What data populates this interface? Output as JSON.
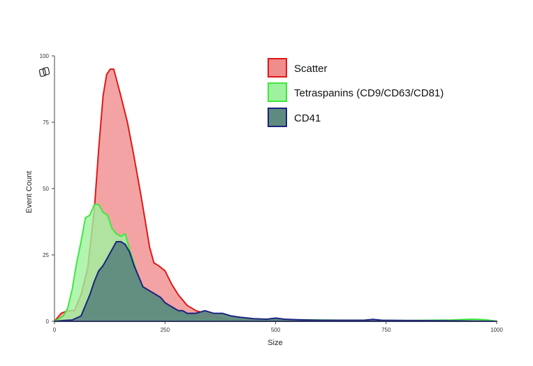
{
  "chart_data": {
    "type": "area",
    "title": "",
    "xlabel": "Size",
    "ylabel": "Event Count",
    "xlim": [
      0,
      1000
    ],
    "ylim": [
      0,
      100
    ],
    "x_ticks": [
      "0",
      "250",
      "500",
      "750",
      "1000"
    ],
    "y_ticks": [
      "0",
      "25",
      "50",
      "75",
      "100"
    ],
    "grid": false,
    "legend_position": "top-right",
    "series": [
      {
        "name": "Scatter",
        "fill": "#f08c8c",
        "stroke": "#e01818",
        "x": [
          0,
          15,
          30,
          45,
          60,
          75,
          90,
          100,
          110,
          118,
          126,
          134,
          142,
          150,
          165,
          180,
          195,
          205,
          215,
          225,
          235,
          250,
          265,
          280,
          300,
          320,
          340,
          360,
          380,
          400,
          440,
          500,
          600,
          800,
          1000
        ],
        "y": [
          0,
          3,
          4,
          4,
          10,
          20,
          42,
          65,
          85,
          93,
          95,
          95,
          90,
          85,
          75,
          62,
          48,
          38,
          28,
          22,
          21,
          19,
          14,
          10,
          6,
          4,
          3,
          2,
          1,
          0.5,
          0.5,
          0.5,
          0.3,
          0.2,
          0
        ]
      },
      {
        "name": "Tetraspanins (CD9/CD63/CD81)",
        "fill": "#9ef29e",
        "stroke": "#3ee83e",
        "x": [
          0,
          20,
          30,
          40,
          50,
          60,
          70,
          80,
          90,
          100,
          110,
          120,
          130,
          140,
          150,
          160,
          170,
          180,
          190,
          200,
          210,
          220,
          230,
          240,
          250,
          260,
          270,
          280,
          300,
          320,
          340,
          360,
          400,
          450,
          500,
          600,
          700,
          800,
          900,
          940,
          960,
          980,
          1000
        ],
        "y": [
          0,
          2,
          5,
          12,
          22,
          30,
          39,
          40,
          44,
          44,
          41,
          40,
          35,
          33,
          32,
          33,
          27,
          22,
          16,
          13,
          10,
          9,
          8,
          7,
          6,
          5,
          4,
          3,
          2,
          1.5,
          1,
          0.8,
          0.5,
          0.5,
          0.5,
          0.5,
          0.3,
          0.3,
          0.5,
          0.8,
          0.7,
          0.5,
          0
        ]
      },
      {
        "name": "CD41",
        "fill": "#5f8a80",
        "stroke": "#1a237e",
        "x": [
          0,
          20,
          40,
          60,
          70,
          80,
          90,
          100,
          110,
          120,
          130,
          140,
          150,
          160,
          170,
          180,
          190,
          200,
          210,
          220,
          230,
          240,
          250,
          260,
          270,
          280,
          290,
          300,
          320,
          340,
          360,
          380,
          400,
          420,
          450,
          480,
          500,
          520,
          550,
          600,
          650,
          700,
          720,
          740,
          800,
          900,
          1000
        ],
        "y": [
          0,
          0.3,
          0.5,
          2,
          6,
          10,
          15,
          19,
          21,
          24,
          27,
          30,
          30,
          29,
          26,
          21,
          17,
          13,
          12,
          11,
          10,
          9,
          7,
          6,
          5,
          4,
          4,
          3,
          3,
          4,
          3,
          3,
          2,
          1.5,
          1,
          0.8,
          1.2,
          0.8,
          0.6,
          0.4,
          0.4,
          0.4,
          0.7,
          0.4,
          0.3,
          0.2,
          0
        ]
      }
    ]
  }
}
